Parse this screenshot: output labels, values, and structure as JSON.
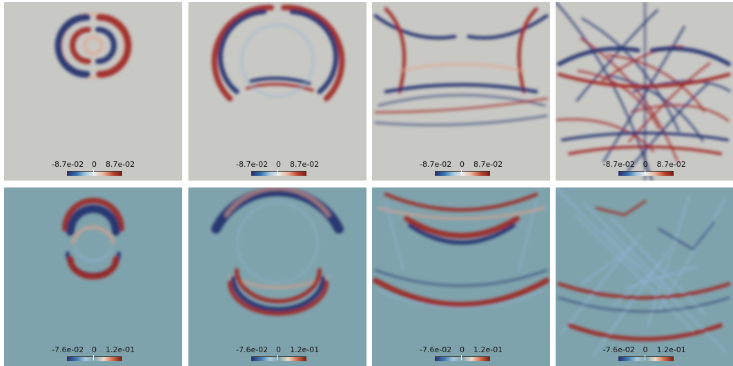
{
  "rows": [
    {
      "background": "#c8c8c4",
      "colorbar": {
        "min_label": "-8.7e-02",
        "mid_label": "0",
        "max_label": "8.7e-02",
        "gradient": [
          "#2b2c6e",
          "#2e6fae",
          "#a7c7dc",
          "#ececea",
          "#e8b39a",
          "#c0452f",
          "#741c17"
        ]
      },
      "panels": [
        {
          "name": "top-t1"
        },
        {
          "name": "top-t2"
        },
        {
          "name": "top-t3"
        },
        {
          "name": "top-t4"
        }
      ]
    },
    {
      "background": "#7fa3ac",
      "colorbar": {
        "min_label": "-7.6e-02",
        "mid_label": "0",
        "max_label": "1.2e-01",
        "gradient": [
          "#2b2c6e",
          "#3d78b0",
          "#a8c9d9",
          "#7fa3ac",
          "#efdcc9",
          "#d06a48",
          "#741c17"
        ]
      },
      "panels": [
        {
          "name": "bottom-t1"
        },
        {
          "name": "bottom-t2"
        },
        {
          "name": "bottom-t3"
        },
        {
          "name": "bottom-t4"
        }
      ]
    }
  ],
  "colors": {
    "red": "#9e2420",
    "blue": "#1e2d6b",
    "light_red": "#e8a088",
    "light_blue": "#8fb4d4"
  }
}
